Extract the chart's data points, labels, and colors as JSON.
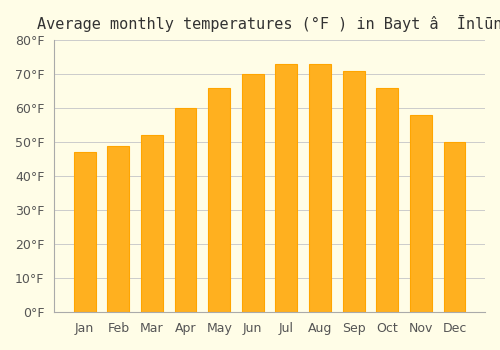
{
  "title": "Average monthly temperatures (°F ) in Bayt â  Ïnlīn",
  "months": [
    "Jan",
    "Feb",
    "Mar",
    "Apr",
    "May",
    "Jun",
    "Jul",
    "Aug",
    "Sep",
    "Oct",
    "Nov",
    "Dec"
  ],
  "values": [
    47,
    49,
    52,
    60,
    66,
    70,
    73,
    73,
    71,
    66,
    58,
    50
  ],
  "bar_color": "#FFB01F",
  "bar_edge_color": "#FFA500",
  "background_color": "#FFFDE7",
  "grid_color": "#CCCCCC",
  "ylim": [
    0,
    80
  ],
  "yticks": [
    0,
    10,
    20,
    30,
    40,
    50,
    60,
    70,
    80
  ],
  "title_fontsize": 11,
  "tick_fontsize": 9,
  "figsize": [
    5.0,
    3.5
  ],
  "dpi": 100
}
